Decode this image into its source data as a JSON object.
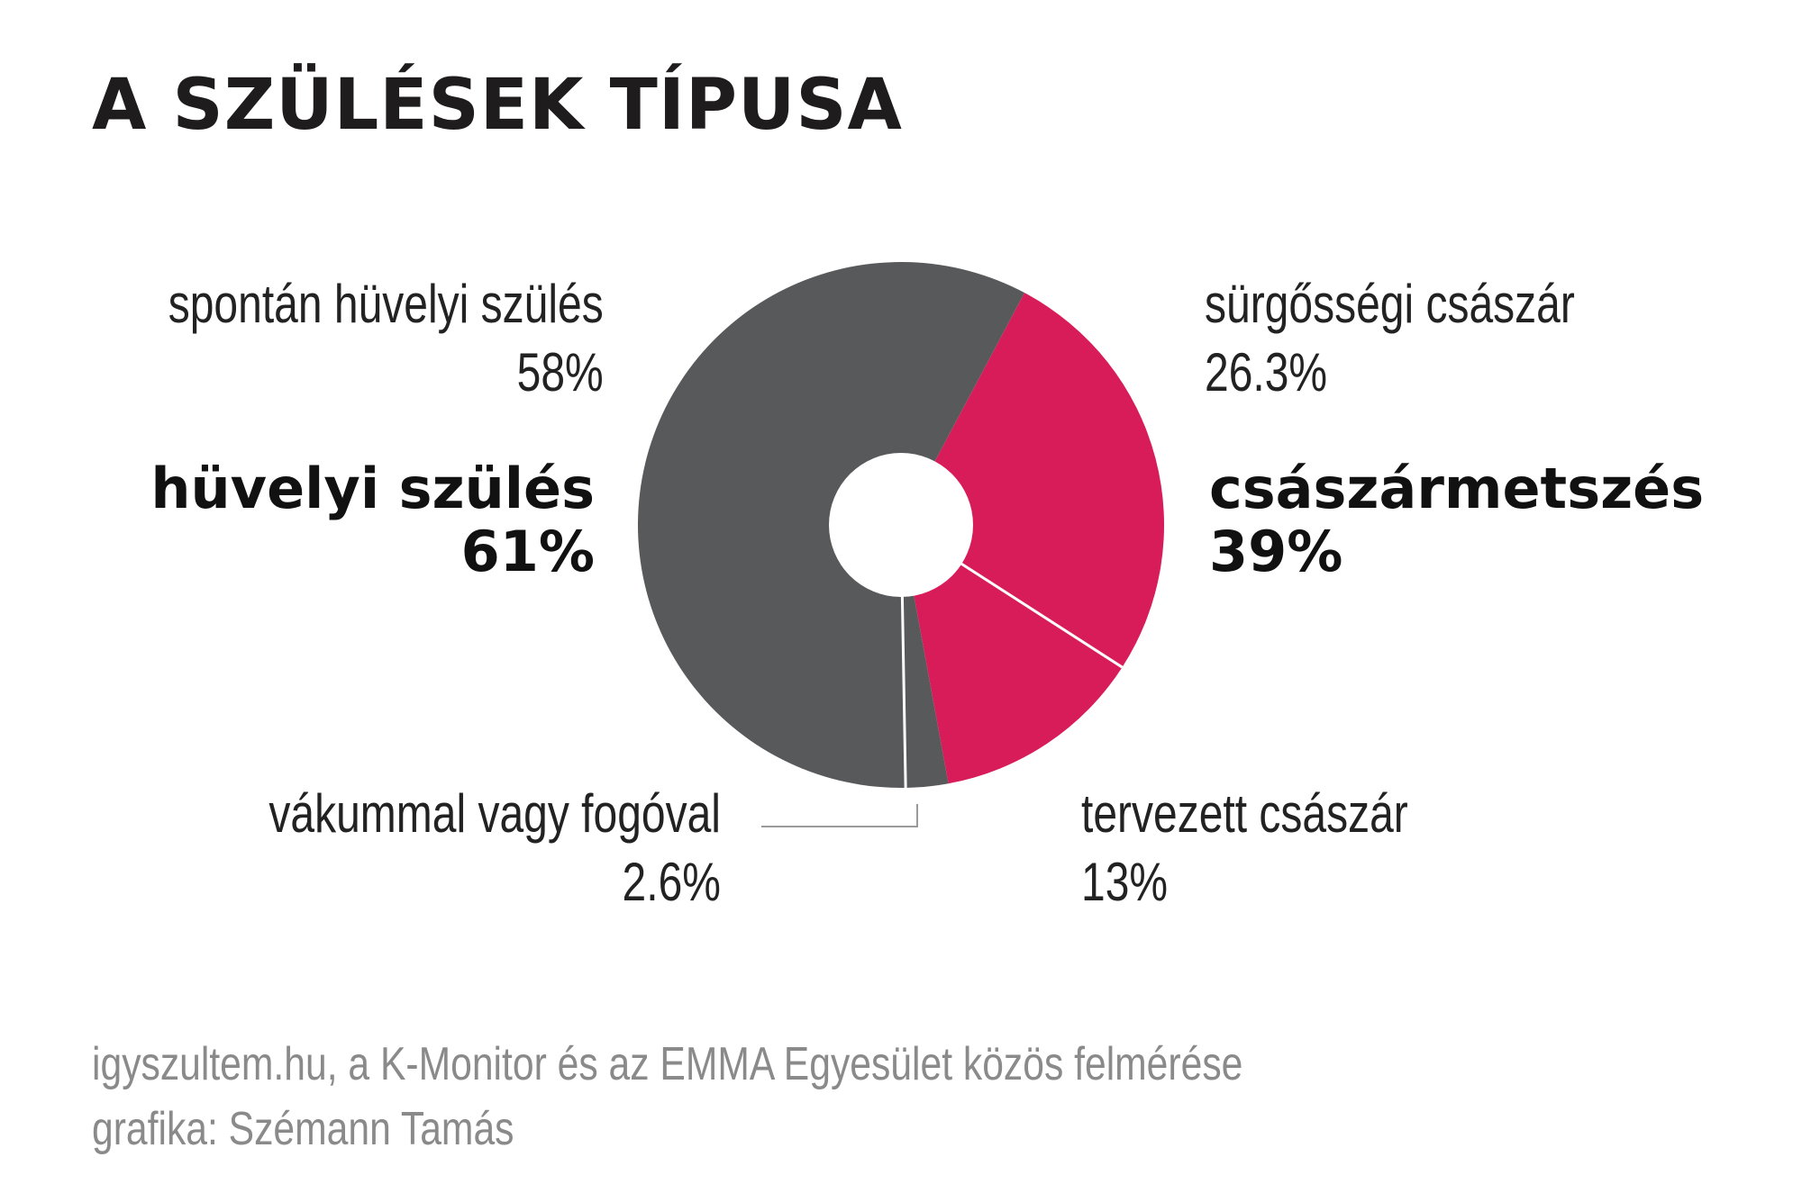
{
  "title": "A SZÜLÉSEK TÍPUSA",
  "colors": {
    "vaginal": "#58595b",
    "cesarean": "#d81c5a",
    "separator": "#ffffff",
    "leader_line": "#9a9a9a"
  },
  "chart_data": {
    "type": "pie",
    "donut": true,
    "slices": [
      {
        "label": "sürgősségi császár",
        "value": 26.3,
        "value_label": "26.3%",
        "color": "#d81c5a"
      },
      {
        "label": "tervezett császár",
        "value": 13,
        "value_label": "13%",
        "color": "#d81c5a"
      },
      {
        "label": "vákummal vagy fogóval",
        "value": 2.6,
        "value_label": "2.6%",
        "color": "#58595b"
      },
      {
        "label": "spontán hüvelyi szülés",
        "value": 58,
        "value_label": "58%",
        "color": "#58595b"
      }
    ],
    "groups": [
      {
        "label": "hüvelyi szülés",
        "value": 61,
        "value_label": "61%"
      },
      {
        "label": "császármetszés",
        "value": 39,
        "value_label": "39%"
      }
    ],
    "legend": "none"
  },
  "footer": {
    "source": "igyszultem.hu, a K-Monitor és az EMMA Egyesület közös felmérése",
    "credit": "grafika: Szémann Tamás"
  }
}
